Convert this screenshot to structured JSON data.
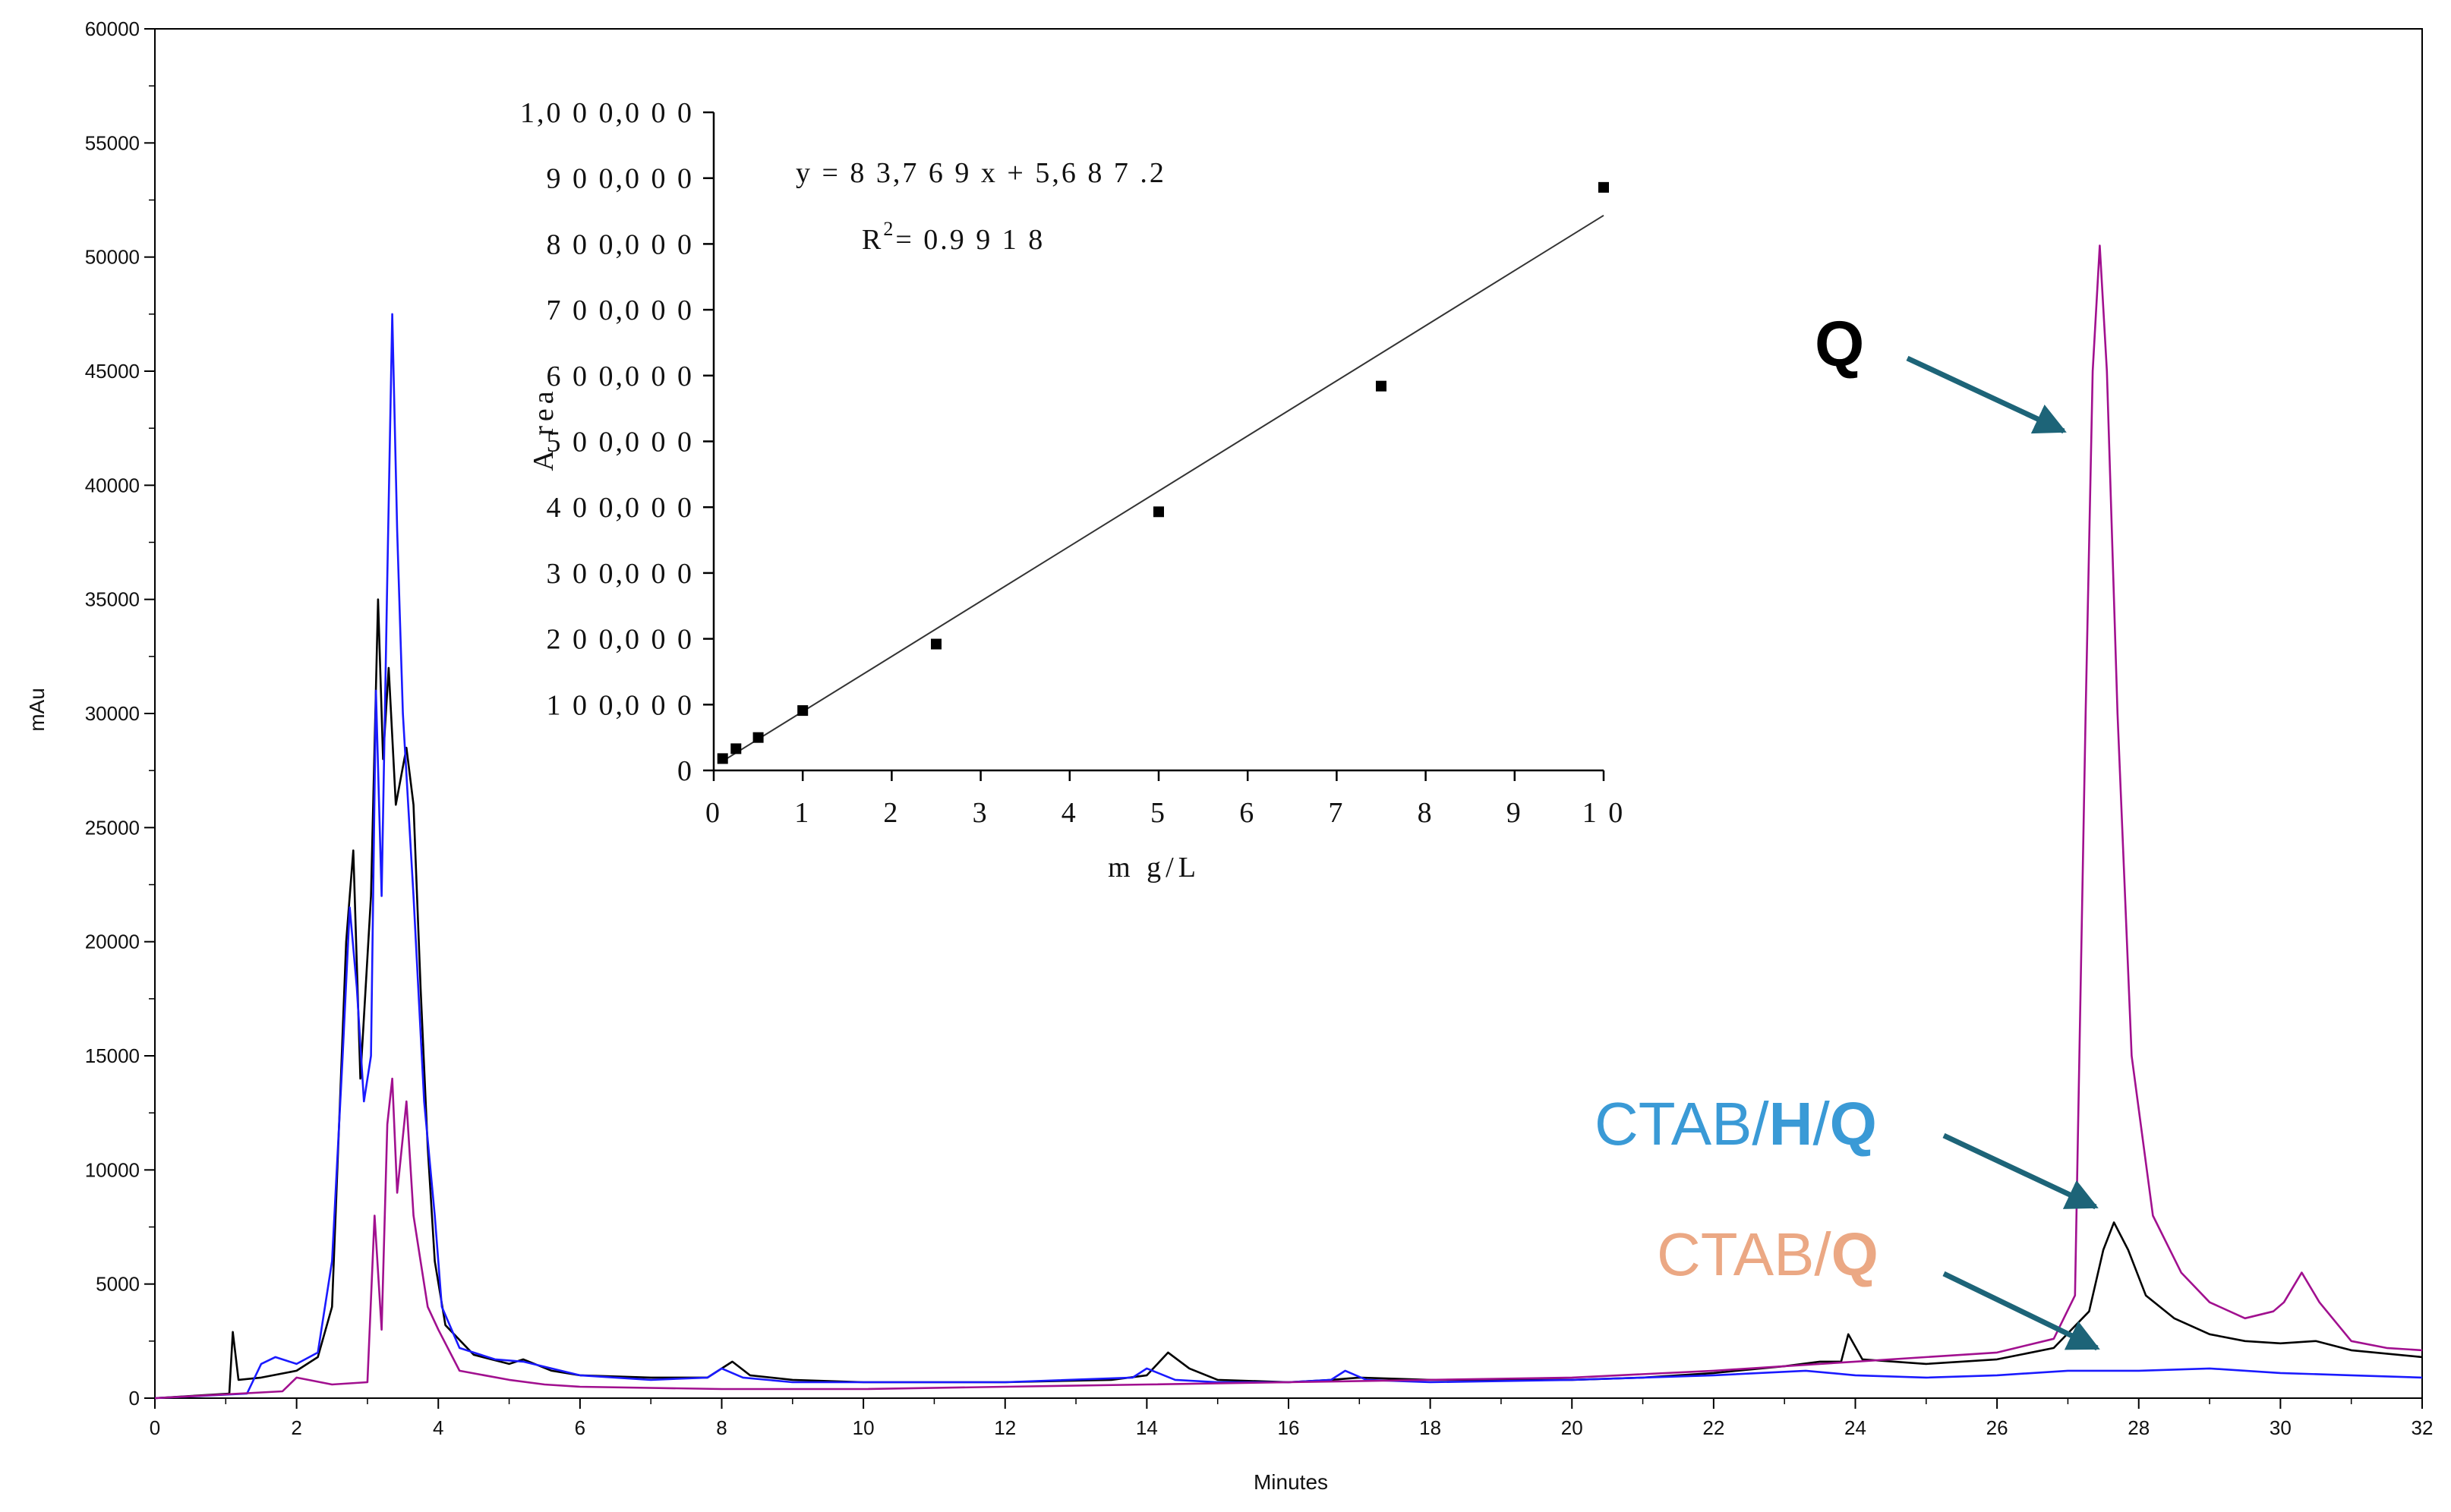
{
  "chart_data": [
    {
      "type": "line",
      "title": "",
      "xlabel": "Minutes",
      "ylabel": "mAu",
      "xlim": [
        0,
        32
      ],
      "ylim": [
        0,
        60000
      ],
      "x_ticks": [
        "0",
        "2",
        "4",
        "6",
        "8",
        "10",
        "12",
        "14",
        "16",
        "18",
        "20",
        "22",
        "24",
        "26",
        "28",
        "30",
        "32"
      ],
      "y_ticks": [
        "0",
        "5000",
        "10000",
        "15000",
        "20000",
        "25000",
        "30000",
        "35000",
        "40000",
        "45000",
        "50000",
        "55000",
        "60000"
      ],
      "grid": false,
      "colors": {
        "black": "#000000",
        "blue": "#1a1aff",
        "magenta": "#a1108f"
      },
      "series": [
        {
          "color": "#000000",
          "points": [
            [
              0,
              0
            ],
            [
              1.05,
              200
            ],
            [
              1.1,
              2900
            ],
            [
              1.18,
              800
            ],
            [
              1.5,
              900
            ],
            [
              2.0,
              1200
            ],
            [
              2.3,
              1800
            ],
            [
              2.5,
              4000
            ],
            [
              2.6,
              12000
            ],
            [
              2.7,
              20000
            ],
            [
              2.8,
              24000
            ],
            [
              2.9,
              14000
            ],
            [
              3.05,
              22000
            ],
            [
              3.15,
              35000
            ],
            [
              3.22,
              28000
            ],
            [
              3.3,
              32000
            ],
            [
              3.4,
              26000
            ],
            [
              3.55,
              28500
            ],
            [
              3.65,
              26000
            ],
            [
              3.75,
              18000
            ],
            [
              3.85,
              11000
            ],
            [
              3.95,
              6000
            ],
            [
              4.1,
              3200
            ],
            [
              4.5,
              1900
            ],
            [
              5.0,
              1500
            ],
            [
              5.2,
              1700
            ],
            [
              5.6,
              1200
            ],
            [
              6,
              1000
            ],
            [
              7,
              900
            ],
            [
              7.8,
              900
            ],
            [
              8.15,
              1600
            ],
            [
              8.4,
              1000
            ],
            [
              9,
              800
            ],
            [
              10,
              700
            ],
            [
              12,
              700
            ],
            [
              13.5,
              800
            ],
            [
              14.0,
              1000
            ],
            [
              14.3,
              2000
            ],
            [
              14.6,
              1300
            ],
            [
              15,
              800
            ],
            [
              16,
              700
            ],
            [
              16.6,
              800
            ],
            [
              17,
              900
            ],
            [
              18,
              800
            ],
            [
              20,
              800
            ],
            [
              21,
              900
            ],
            [
              22,
              1100
            ],
            [
              23,
              1400
            ],
            [
              23.5,
              1600
            ],
            [
              23.8,
              1600
            ],
            [
              23.9,
              2800
            ],
            [
              24.1,
              1700
            ],
            [
              25,
              1500
            ],
            [
              26,
              1700
            ],
            [
              26.8,
              2200
            ],
            [
              27.3,
              3800
            ],
            [
              27.5,
              6500
            ],
            [
              27.65,
              7700
            ],
            [
              27.85,
              6500
            ],
            [
              28.1,
              4500
            ],
            [
              28.5,
              3500
            ],
            [
              29,
              2800
            ],
            [
              29.5,
              2500
            ],
            [
              30,
              2400
            ],
            [
              30.5,
              2500
            ],
            [
              31,
              2100
            ],
            [
              32,
              1800
            ]
          ]
        },
        {
          "color": "#1a1aff",
          "points": [
            [
              0,
              0
            ],
            [
              1.3,
              200
            ],
            [
              1.5,
              1500
            ],
            [
              1.7,
              1800
            ],
            [
              2.0,
              1500
            ],
            [
              2.3,
              2000
            ],
            [
              2.5,
              6000
            ],
            [
              2.65,
              15000
            ],
            [
              2.75,
              21500
            ],
            [
              2.85,
              18000
            ],
            [
              2.95,
              13000
            ],
            [
              3.05,
              15000
            ],
            [
              3.12,
              31000
            ],
            [
              3.2,
              22000
            ],
            [
              3.28,
              36000
            ],
            [
              3.35,
              47500
            ],
            [
              3.42,
              38000
            ],
            [
              3.5,
              30000
            ],
            [
              3.65,
              22000
            ],
            [
              3.8,
              13000
            ],
            [
              3.95,
              8000
            ],
            [
              4.05,
              4000
            ],
            [
              4.3,
              2200
            ],
            [
              4.8,
              1700
            ],
            [
              5.2,
              1600
            ],
            [
              6,
              1000
            ],
            [
              7,
              800
            ],
            [
              7.8,
              900
            ],
            [
              8.0,
              1300
            ],
            [
              8.3,
              900
            ],
            [
              9,
              700
            ],
            [
              10,
              700
            ],
            [
              12,
              700
            ],
            [
              13.8,
              900
            ],
            [
              14,
              1300
            ],
            [
              14.4,
              800
            ],
            [
              15,
              700
            ],
            [
              16,
              700
            ],
            [
              16.6,
              800
            ],
            [
              16.8,
              1200
            ],
            [
              17.1,
              800
            ],
            [
              18,
              700
            ],
            [
              20,
              800
            ],
            [
              22,
              1000
            ],
            [
              23.3,
              1200
            ],
            [
              24,
              1000
            ],
            [
              25,
              900
            ],
            [
              26,
              1000
            ],
            [
              27,
              1200
            ],
            [
              28,
              1200
            ],
            [
              29,
              1300
            ],
            [
              30,
              1100
            ],
            [
              31,
              1000
            ],
            [
              32,
              900
            ]
          ]
        },
        {
          "color": "#a1108f",
          "points": [
            [
              0,
              0
            ],
            [
              1.8,
              300
            ],
            [
              2.0,
              900
            ],
            [
              2.5,
              600
            ],
            [
              3.0,
              700
            ],
            [
              3.1,
              8000
            ],
            [
              3.2,
              3000
            ],
            [
              3.28,
              12000
            ],
            [
              3.35,
              14000
            ],
            [
              3.42,
              9000
            ],
            [
              3.55,
              13000
            ],
            [
              3.65,
              8000
            ],
            [
              3.75,
              6000
            ],
            [
              3.85,
              4000
            ],
            [
              4.0,
              3000
            ],
            [
              4.3,
              1200
            ],
            [
              5,
              800
            ],
            [
              5.5,
              600
            ],
            [
              6,
              500
            ],
            [
              8,
              400
            ],
            [
              10,
              400
            ],
            [
              12,
              500
            ],
            [
              14,
              600
            ],
            [
              16,
              700
            ],
            [
              18,
              800
            ],
            [
              20,
              900
            ],
            [
              22,
              1200
            ],
            [
              24,
              1600
            ],
            [
              26,
              2000
            ],
            [
              26.8,
              2600
            ],
            [
              27.1,
              4500
            ],
            [
              27.25,
              30000
            ],
            [
              27.35,
              45000
            ],
            [
              27.45,
              50500
            ],
            [
              27.55,
              45000
            ],
            [
              27.7,
              30000
            ],
            [
              27.9,
              15000
            ],
            [
              28.2,
              8000
            ],
            [
              28.6,
              5500
            ],
            [
              29,
              4200
            ],
            [
              29.5,
              3500
            ],
            [
              29.9,
              3800
            ],
            [
              30.05,
              4200
            ],
            [
              30.3,
              5500
            ],
            [
              30.55,
              4200
            ],
            [
              31,
              2500
            ],
            [
              31.5,
              2200
            ],
            [
              32,
              2100
            ]
          ]
        }
      ]
    },
    {
      "type": "scatter",
      "title": "",
      "xlabel": "m g/L",
      "ylabel": "A rea",
      "xlim": [
        0,
        10
      ],
      "ylim": [
        0,
        1000000
      ],
      "x_ticks": [
        "0",
        "1",
        "2",
        "3",
        "4",
        "5",
        "6",
        "7",
        "8",
        "9",
        "1 0"
      ],
      "y_ticks": [
        "0",
        "1 0 0,0 0 0",
        "2 0 0,0 0 0",
        "3 0 0,0 0 0",
        "4 0 0,0 0 0",
        "5 0 0,0 0 0",
        "6 0 0,0 0 0",
        "7 0 0,0 0 0",
        "8 0 0,0 0 0",
        "9 0 0,0 0 0",
        "1,0 0 0,0 0 0"
      ],
      "points": [
        [
          0.1,
          18000
        ],
        [
          0.25,
          33000
        ],
        [
          0.5,
          50000
        ],
        [
          1,
          91000
        ],
        [
          2.5,
          192000
        ],
        [
          5,
          393000
        ],
        [
          7.5,
          584000
        ],
        [
          10,
          886000
        ]
      ],
      "fit_line": {
        "slope": 83769,
        "intercept": 5687.2,
        "x_range": [
          0.1,
          10
        ]
      },
      "equation": "y = 8 3,7 6 9 x + 5,6 8 7 .2",
      "r2_label": "R",
      "r2_sup": "2",
      "r2_value": "= 0.9 9 1 8"
    }
  ],
  "annotations": {
    "q_label": "Q",
    "ctab_hq": {
      "prefix": "CTAB/",
      "h": "H",
      "slash": "/",
      "q": "Q"
    },
    "ctab_q": {
      "prefix": "CTAB/",
      "q": "Q"
    },
    "colors": {
      "arrow": "#1d6478",
      "ctab_hq": "#3a9ad6",
      "ctab_q": "#eba884"
    }
  }
}
